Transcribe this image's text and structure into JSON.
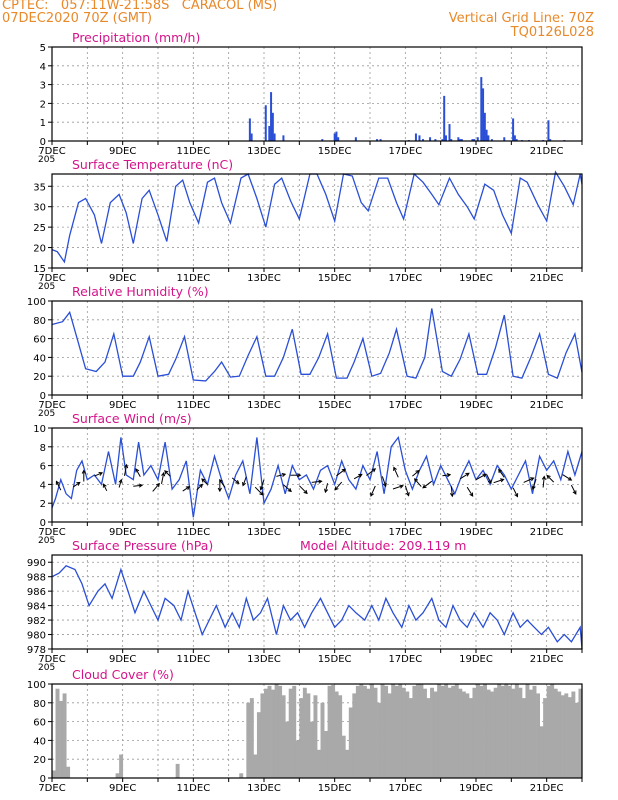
{
  "header": {
    "line1": "CPTEC:   057:11W-21:58S   CARACOL (MS)",
    "line2": "07DEC2020 70Z (GMT)",
    "right1": "Vertical Grid Line: 70Z",
    "right2": "TQ0126L028",
    "header_color": "#e8892a",
    "title_color": "#d4148a",
    "series_color": "#2a4fd6",
    "cloud_color": "#a9a9a9"
  },
  "x_tick_labels": [
    "7DEC",
    "9DEC",
    "11DEC",
    "13DEC",
    "15DEC",
    "17DEC",
    "19DEC",
    "21DEC"
  ],
  "overlap_label": "205",
  "model_altitude": "Model Altitude: 209.119 m",
  "chart_data": [
    {
      "type": "bar",
      "title": "Precipitation (mm/h)",
      "ylim": [
        0,
        5
      ],
      "yticks": [
        "0",
        "1",
        "2",
        "3",
        "4",
        "5"
      ],
      "x": [
        12.6,
        12.65,
        13.05,
        13.15,
        13.2,
        13.25,
        13.3,
        13.55,
        14.65,
        15.0,
        15.05,
        15.1,
        15.6,
        16.2,
        16.3,
        17.1,
        17.3,
        17.4,
        17.5,
        17.7,
        17.85,
        18.05,
        18.1,
        18.15,
        18.25,
        18.3,
        18.5,
        18.55,
        18.6,
        18.9,
        18.95,
        19.05,
        19.15,
        19.2,
        19.25,
        19.3,
        19.35,
        19.45,
        19.8,
        20.05,
        20.1,
        20.15,
        20.3,
        20.5,
        20.9,
        21.05,
        21.1,
        21.5
      ],
      "values": [
        1.2,
        0.4,
        1.9,
        0.8,
        2.6,
        1.5,
        0.4,
        0.3,
        0.1,
        0.4,
        0.5,
        0.2,
        0.2,
        0.1,
        0.1,
        0.05,
        0.4,
        0.3,
        0.1,
        0.2,
        0.1,
        0.1,
        2.4,
        0.3,
        0.9,
        0.1,
        0.2,
        0.1,
        0.1,
        0.1,
        0.1,
        0.2,
        3.4,
        2.8,
        1.5,
        0.6,
        0.3,
        0.1,
        0.2,
        1.2,
        0.3,
        0.1,
        0.05,
        0.05,
        0.05,
        1.1,
        0.1,
        0.05
      ]
    },
    {
      "type": "line",
      "title": "Surface Temperature (nC)",
      "ylim": [
        15,
        38
      ],
      "yticks": [
        "15",
        "20",
        "25",
        "30",
        "35"
      ],
      "ytick_values": [
        15,
        20,
        25,
        30,
        35
      ],
      "x": [
        7.0,
        7.15,
        7.35,
        7.5,
        7.75,
        7.95,
        8.2,
        8.4,
        8.65,
        8.9,
        9.1,
        9.3,
        9.55,
        9.75,
        10.0,
        10.25,
        10.5,
        10.7,
        10.9,
        11.15,
        11.4,
        11.6,
        11.8,
        12.05,
        12.35,
        12.55,
        12.8,
        13.05,
        13.3,
        13.5,
        13.75,
        14.0,
        14.3,
        14.5,
        14.75,
        15.0,
        15.25,
        15.5,
        15.75,
        15.95,
        16.25,
        16.5,
        16.75,
        16.95,
        17.25,
        17.5,
        17.75,
        17.95,
        18.25,
        18.5,
        18.75,
        18.95,
        19.25,
        19.5,
        19.75,
        20.0,
        20.25,
        20.45,
        20.75,
        21.0,
        21.25,
        21.5,
        21.75,
        21.95,
        22.0
      ],
      "values": [
        19.5,
        19.0,
        16.5,
        23.0,
        31.0,
        32.0,
        28.0,
        21.0,
        31.0,
        33.0,
        28.5,
        21.0,
        32.0,
        34.0,
        28.0,
        21.5,
        35.0,
        36.5,
        31.0,
        26.0,
        36.0,
        37.0,
        31.0,
        26.0,
        37.0,
        38.0,
        32.0,
        25.0,
        35.5,
        37.0,
        31.5,
        27.0,
        38.0,
        38.0,
        33.0,
        26.5,
        38.0,
        37.5,
        31.0,
        29.0,
        37.0,
        37.0,
        31.0,
        27.0,
        38.0,
        36.0,
        33.0,
        30.5,
        37.0,
        33.0,
        30.0,
        27.0,
        35.5,
        34.0,
        28.0,
        23.5,
        37.0,
        36.0,
        30.5,
        26.5,
        38.5,
        35.0,
        30.5,
        38.0,
        35.5
      ]
    },
    {
      "type": "line",
      "title": "Relative Humidity (%)",
      "ylim": [
        0,
        100
      ],
      "yticks": [
        "0",
        "20",
        "40",
        "60",
        "80",
        "100"
      ],
      "ytick_values": [
        0,
        20,
        40,
        60,
        80,
        100
      ],
      "x": [
        7.0,
        7.3,
        7.5,
        7.75,
        7.95,
        8.25,
        8.5,
        8.75,
        9.0,
        9.3,
        9.5,
        9.75,
        10.0,
        10.3,
        10.5,
        10.75,
        11.0,
        11.35,
        11.6,
        11.8,
        12.05,
        12.3,
        12.55,
        12.8,
        13.05,
        13.3,
        13.55,
        13.8,
        14.05,
        14.3,
        14.55,
        14.8,
        15.05,
        15.35,
        15.55,
        15.8,
        16.05,
        16.3,
        16.55,
        16.75,
        17.05,
        17.3,
        17.55,
        17.75,
        18.05,
        18.3,
        18.55,
        18.8,
        19.05,
        19.3,
        19.55,
        19.8,
        20.05,
        20.3,
        20.55,
        20.8,
        21.05,
        21.3,
        21.55,
        21.8,
        22.0
      ],
      "values": [
        75,
        78,
        88,
        55,
        28,
        25,
        35,
        65,
        20,
        20,
        35,
        62,
        20,
        22,
        38,
        62,
        16,
        15,
        25,
        35,
        19,
        20,
        42,
        62,
        20,
        20,
        40,
        70,
        22,
        22,
        40,
        65,
        18,
        18,
        35,
        60,
        20,
        23,
        45,
        70,
        20,
        18,
        40,
        92,
        25,
        20,
        38,
        65,
        22,
        22,
        50,
        85,
        20,
        18,
        40,
        65,
        22,
        18,
        45,
        65,
        24
      ]
    },
    {
      "type": "line",
      "title": "Surface Wind (m/s)",
      "ylim": [
        0,
        10
      ],
      "yticks": [
        "0",
        "2",
        "4",
        "6",
        "8",
        "10"
      ],
      "ytick_values": [
        0,
        2,
        4,
        6,
        8,
        10
      ],
      "x": [
        7.0,
        7.1,
        7.25,
        7.4,
        7.55,
        7.7,
        7.85,
        8.0,
        8.2,
        8.4,
        8.6,
        8.8,
        8.95,
        9.1,
        9.3,
        9.45,
        9.6,
        9.8,
        10.0,
        10.2,
        10.4,
        10.6,
        10.8,
        11.0,
        11.2,
        11.4,
        11.6,
        11.8,
        12.0,
        12.2,
        12.4,
        12.6,
        12.8,
        13.0,
        13.2,
        13.4,
        13.6,
        13.8,
        14.0,
        14.2,
        14.4,
        14.6,
        14.8,
        15.0,
        15.2,
        15.4,
        15.6,
        15.8,
        16.0,
        16.2,
        16.4,
        16.6,
        16.8,
        17.0,
        17.2,
        17.4,
        17.6,
        17.8,
        18.0,
        18.2,
        18.4,
        18.6,
        18.8,
        19.0,
        19.2,
        19.4,
        19.6,
        19.8,
        20.0,
        20.2,
        20.4,
        20.6,
        20.8,
        21.0,
        21.2,
        21.4,
        21.6,
        21.8,
        22.0
      ],
      "values": [
        1.5,
        2.5,
        4.5,
        3.0,
        2.5,
        5.5,
        6.5,
        4.5,
        5.0,
        4.0,
        7.5,
        4.0,
        9.0,
        5.0,
        4.5,
        8.5,
        5.0,
        6.0,
        4.5,
        8.5,
        3.5,
        4.5,
        6.5,
        0.5,
        5.5,
        4.0,
        7.0,
        4.5,
        2.5,
        5.0,
        6.5,
        3.0,
        9.0,
        2.0,
        3.5,
        6.0,
        3.0,
        6.0,
        4.5,
        5.0,
        3.5,
        5.5,
        6.0,
        4.0,
        6.5,
        4.5,
        3.5,
        6.0,
        4.5,
        7.5,
        3.0,
        8.0,
        9.0,
        5.5,
        3.5,
        5.5,
        7.0,
        4.0,
        6.0,
        4.5,
        3.0,
        5.0,
        6.5,
        4.5,
        5.5,
        4.0,
        6.0,
        5.0,
        3.5,
        5.0,
        6.5,
        3.0,
        7.0,
        5.5,
        6.5,
        4.5,
        7.5,
        5.0,
        7.5
      ],
      "arrows": [
        [
          7.25,
          -0.4,
          0.8
        ],
        [
          7.6,
          0.6,
          0.4
        ],
        [
          7.9,
          0.0,
          1.0
        ],
        [
          8.2,
          0.7,
          0.3
        ],
        [
          8.55,
          -0.3,
          0.6
        ],
        [
          8.9,
          0.2,
          0.7
        ],
        [
          9.05,
          0.2,
          1.0
        ],
        [
          9.3,
          0.8,
          0.1
        ],
        [
          9.5,
          -0.4,
          0.7
        ],
        [
          9.85,
          0.6,
          0.7
        ],
        [
          10.1,
          0.2,
          1.0
        ],
        [
          10.35,
          -0.5,
          0.5
        ],
        [
          10.7,
          0.6,
          0.4
        ],
        [
          11.1,
          0.5,
          0.5
        ],
        [
          11.4,
          -0.5,
          0.5
        ],
        [
          11.75,
          0.0,
          -0.9
        ],
        [
          11.9,
          -0.5,
          0.7
        ],
        [
          12.1,
          0.6,
          -0.5
        ],
        [
          12.5,
          -0.3,
          -0.8
        ],
        [
          12.75,
          0.7,
          -0.7
        ],
        [
          13.0,
          -0.3,
          -0.9
        ],
        [
          13.35,
          0.8,
          0.2
        ],
        [
          13.55,
          0.7,
          -0.6
        ],
        [
          13.75,
          0.9,
          0.0
        ],
        [
          14.0,
          0.7,
          -0.7
        ],
        [
          14.35,
          0.9,
          0.1
        ],
        [
          14.8,
          -0.2,
          -0.8
        ],
        [
          15.05,
          0.8,
          0.6
        ],
        [
          15.2,
          -0.6,
          -0.7
        ],
        [
          15.55,
          0.7,
          0.4
        ],
        [
          15.9,
          0.8,
          0.6
        ],
        [
          16.15,
          -0.4,
          -0.9
        ],
        [
          16.35,
          0.3,
          -0.9
        ],
        [
          16.65,
          0.9,
          0.3
        ],
        [
          16.8,
          -0.4,
          0.9
        ],
        [
          17.0,
          0.3,
          -0.9
        ],
        [
          17.2,
          0.6,
          0.5
        ],
        [
          17.45,
          -0.6,
          0.7
        ],
        [
          17.75,
          -0.8,
          -0.6
        ],
        [
          18.05,
          0.7,
          0.1
        ],
        [
          18.3,
          0.1,
          -0.9
        ],
        [
          18.55,
          0.8,
          0.5
        ],
        [
          18.75,
          0.5,
          -0.8
        ],
        [
          19.0,
          0.9,
          0.5
        ],
        [
          19.3,
          0.4,
          -0.8
        ],
        [
          19.5,
          0.9,
          0.3
        ],
        [
          19.8,
          -0.5,
          0.7
        ],
        [
          20.05,
          0.4,
          -0.8
        ],
        [
          20.35,
          0.9,
          0.4
        ],
        [
          20.7,
          -0.3,
          -0.9
        ],
        [
          20.9,
          0.1,
          1.0
        ],
        [
          21.2,
          -0.6,
          0.6
        ],
        [
          21.45,
          0.8,
          -0.5
        ],
        [
          21.7,
          0.4,
          -0.8
        ]
      ]
    },
    {
      "type": "line",
      "title": "Surface Pressure (hPa)",
      "ylim": [
        978,
        991
      ],
      "yticks": [
        "978",
        "980",
        "982",
        "984",
        "986",
        "988",
        "990"
      ],
      "ytick_values": [
        978,
        980,
        982,
        984,
        986,
        988,
        990
      ],
      "x": [
        7.0,
        7.2,
        7.4,
        7.65,
        7.85,
        8.05,
        8.3,
        8.5,
        8.7,
        8.95,
        9.15,
        9.35,
        9.6,
        9.8,
        10.0,
        10.2,
        10.45,
        10.65,
        10.85,
        11.05,
        11.25,
        11.45,
        11.65,
        11.9,
        12.1,
        12.3,
        12.5,
        12.7,
        12.9,
        13.1,
        13.35,
        13.55,
        13.75,
        13.95,
        14.15,
        14.35,
        14.6,
        14.8,
        15.0,
        15.2,
        15.4,
        15.6,
        15.85,
        16.05,
        16.25,
        16.45,
        16.65,
        16.9,
        17.1,
        17.3,
        17.5,
        17.75,
        17.95,
        18.15,
        18.35,
        18.55,
        18.75,
        18.95,
        19.2,
        19.4,
        19.6,
        19.8,
        20.05,
        20.25,
        20.45,
        20.65,
        20.85,
        21.05,
        21.3,
        21.5,
        21.7,
        21.95,
        22.0
      ],
      "values": [
        988,
        988.5,
        989.5,
        989,
        987,
        984,
        986,
        987,
        985,
        989,
        986,
        983,
        986,
        984,
        982,
        985,
        984,
        982,
        986,
        983,
        980,
        982,
        984,
        981,
        983,
        981,
        985,
        982,
        983,
        985,
        980,
        984,
        982,
        983,
        981,
        983,
        985,
        983,
        981,
        982,
        984,
        983,
        982,
        984,
        982,
        985,
        983,
        981,
        984,
        982,
        983,
        985,
        982,
        981,
        984,
        982,
        981,
        983,
        981,
        983,
        982,
        980,
        983,
        981,
        982,
        981,
        980,
        981,
        979,
        980,
        979,
        981,
        978
      ]
    },
    {
      "type": "bar",
      "title": "Cloud Cover (%)",
      "ylim": [
        0,
        100
      ],
      "yticks": [
        "0",
        "20",
        "40",
        "60",
        "80",
        "100"
      ],
      "x": [
        7.0,
        7.1,
        7.2,
        7.3,
        7.4,
        7.5,
        7.6,
        7.7,
        7.8,
        7.9,
        8.0,
        8.1,
        8.2,
        8.3,
        8.4,
        8.5,
        8.6,
        8.7,
        8.8,
        8.9,
        9.0,
        9.1,
        9.2,
        9.3,
        9.4,
        9.5,
        9.6,
        9.7,
        9.8,
        9.9,
        10.0,
        10.1,
        10.2,
        10.3,
        10.4,
        10.5,
        10.6,
        10.7,
        10.8,
        10.9,
        11.0,
        11.1,
        11.2,
        11.3,
        11.4,
        11.5,
        11.6,
        11.7,
        11.8,
        11.9,
        12.0,
        12.1,
        12.2,
        12.3,
        12.4,
        12.5,
        12.6,
        12.7,
        12.8,
        12.9,
        13.0,
        13.1,
        13.2,
        13.3,
        13.4,
        13.5,
        13.6,
        13.7,
        13.8,
        13.9,
        14.0,
        14.1,
        14.2,
        14.3,
        14.4,
        14.5,
        14.6,
        14.7,
        14.8,
        14.9,
        15.0,
        15.1,
        15.2,
        15.3,
        15.4,
        15.5,
        15.6,
        15.7,
        15.8,
        15.9,
        16.0,
        16.1,
        16.2,
        16.3,
        16.4,
        16.5,
        16.6,
        16.7,
        16.8,
        16.9,
        17.0,
        17.1,
        17.2,
        17.3,
        17.4,
        17.5,
        17.6,
        17.7,
        17.8,
        17.9,
        18.0,
        18.1,
        18.2,
        18.3,
        18.4,
        18.5,
        18.6,
        18.7,
        18.8,
        18.9,
        19.0,
        19.1,
        19.2,
        19.3,
        19.4,
        19.5,
        19.6,
        19.7,
        19.8,
        19.9,
        20.0,
        20.1,
        20.2,
        20.3,
        20.4,
        20.5,
        20.6,
        20.7,
        20.8,
        20.9,
        21.0,
        21.1,
        21.2,
        21.3,
        21.4,
        21.5,
        21.6,
        21.7,
        21.8,
        21.9
      ],
      "values": [
        8,
        95,
        82,
        90,
        12,
        0,
        0,
        0,
        0,
        0,
        0,
        0,
        0,
        0,
        0,
        0,
        0,
        0,
        5,
        25,
        0,
        0,
        0,
        0,
        0,
        0,
        0,
        0,
        0,
        0,
        0,
        0,
        0,
        0,
        0,
        15,
        0,
        0,
        0,
        0,
        0,
        0,
        0,
        0,
        0,
        0,
        0,
        0,
        0,
        0,
        0,
        0,
        0,
        5,
        0,
        80,
        85,
        25,
        70,
        90,
        95,
        98,
        94,
        100,
        98,
        88,
        60,
        95,
        98,
        40,
        85,
        96,
        90,
        60,
        88,
        30,
        80,
        50,
        98,
        99,
        92,
        88,
        45,
        30,
        75,
        90,
        98,
        100,
        98,
        95,
        100,
        96,
        80,
        100,
        98,
        90,
        100,
        98,
        100,
        96,
        92,
        85,
        98,
        100,
        100,
        95,
        85,
        96,
        92,
        100,
        98,
        100,
        96,
        98,
        100,
        95,
        92,
        90,
        85,
        96,
        100,
        98,
        100,
        94,
        92,
        96,
        100,
        98,
        100,
        98,
        95,
        100,
        96,
        85,
        100,
        94,
        98,
        90,
        55,
        85,
        98,
        100,
        95,
        92,
        88,
        90,
        86,
        92,
        80,
        95
      ]
    }
  ]
}
